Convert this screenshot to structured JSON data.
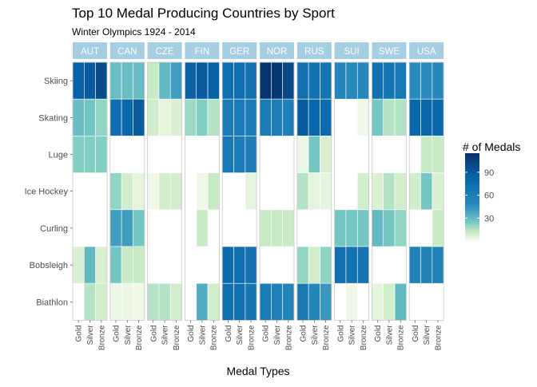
{
  "chart_data": {
    "type": "heatmap",
    "title": "Top 10 Medal Producing Countries by Sport",
    "subtitle": "Winter Olympics 1924 - 2014",
    "xlabel": "Medal Types",
    "ylabel": "",
    "facets": [
      "AUT",
      "CAN",
      "CZE",
      "FIN",
      "GER",
      "NOR",
      "RUS",
      "SUI",
      "SWE",
      "USA"
    ],
    "medal_types": [
      "Gold",
      "Silver",
      "Bronze"
    ],
    "sports": [
      "Skiing",
      "Skating",
      "Luge",
      "Ice Hockey",
      "Curling",
      "Bobsleigh",
      "Biathlon"
    ],
    "legend": {
      "title": "# of Medals",
      "ticks": [
        30,
        60,
        90
      ],
      "range": [
        0,
        115
      ],
      "placement": "right"
    },
    "values": {
      "AUT": {
        "Skiing": [
          85,
          88,
          98
        ],
        "Skating": [
          28,
          25,
          20
        ],
        "Luge": [
          22,
          22,
          22
        ],
        "Ice Hockey": [
          null,
          null,
          null
        ],
        "Curling": [
          null,
          null,
          null
        ],
        "Bobsleigh": [
          8,
          30,
          8
        ],
        "Biathlon": [
          null,
          15,
          10
        ]
      },
      "CAN": {
        "Skiing": [
          28,
          28,
          28
        ],
        "Skating": [
          75,
          80,
          88
        ],
        "Luge": [
          null,
          null,
          null
        ],
        "Ice Hockey": [
          20,
          10,
          5
        ],
        "Curling": [
          40,
          40,
          25
        ],
        "Bobsleigh": [
          25,
          12,
          12
        ],
        "Biathlon": [
          3,
          3,
          2
        ]
      },
      "CZE": {
        "Skiing": [
          12,
          30,
          40
        ],
        "Skating": [
          10,
          5,
          8
        ],
        "Luge": [
          null,
          null,
          null
        ],
        "Ice Hockey": [
          2,
          10,
          10
        ],
        "Curling": [
          null,
          null,
          null
        ],
        "Bobsleigh": [
          null,
          null,
          null
        ],
        "Biathlon": [
          15,
          15,
          10
        ]
      },
      "FIN": {
        "Skiing": [
          85,
          88,
          85
        ],
        "Skating": [
          18,
          22,
          15
        ],
        "Luge": [
          null,
          null,
          null
        ],
        "Ice Hockey": [
          null,
          2,
          12
        ],
        "Curling": [
          null,
          12,
          null
        ],
        "Bobsleigh": [
          null,
          null,
          null
        ],
        "Biathlon": [
          null,
          35,
          10
        ]
      },
      "GER": {
        "Skiing": [
          75,
          75,
          72
        ],
        "Skating": [
          62,
          62,
          62
        ],
        "Luge": [
          65,
          62,
          62
        ],
        "Ice Hockey": [
          null,
          null,
          5
        ],
        "Curling": [
          null,
          null,
          null
        ],
        "Bobsleigh": [
          78,
          75,
          72
        ],
        "Biathlon": [
          75,
          72,
          68
        ]
      },
      "NOR": {
        "Skiing": [
          112,
          110,
          100
        ],
        "Skating": [
          62,
          60,
          58
        ],
        "Luge": [
          null,
          null,
          null
        ],
        "Ice Hockey": [
          null,
          null,
          null
        ],
        "Curling": [
          12,
          12,
          12
        ],
        "Bobsleigh": [
          null,
          null,
          null
        ],
        "Biathlon": [
          62,
          58,
          55
        ]
      },
      "RUS": {
        "Skiing": [
          72,
          70,
          68
        ],
        "Skating": [
          88,
          82,
          78
        ],
        "Luge": [
          3,
          25,
          8
        ],
        "Ice Hockey": [
          15,
          5,
          5
        ],
        "Curling": [
          null,
          null,
          null
        ],
        "Bobsleigh": [
          20,
          10,
          20
        ],
        "Biathlon": [
          65,
          52,
          42
        ]
      },
      "SUI": {
        "Skiing": [
          52,
          50,
          50
        ],
        "Skating": [
          null,
          null,
          2
        ],
        "Luge": [
          null,
          null,
          null
        ],
        "Ice Hockey": [
          null,
          null,
          10
        ],
        "Curling": [
          25,
          25,
          25
        ],
        "Bobsleigh": [
          72,
          70,
          68
        ],
        "Biathlon": [
          null,
          2,
          null
        ]
      },
      "SWE": {
        "Skiing": [
          72,
          68,
          65
        ],
        "Skating": [
          25,
          15,
          15
        ],
        "Luge": [
          null,
          null,
          null
        ],
        "Ice Hockey": [
          8,
          15,
          10
        ],
        "Curling": [
          30,
          25,
          20
        ],
        "Bobsleigh": [
          null,
          null,
          null
        ],
        "Biathlon": [
          5,
          10,
          30
        ]
      },
      "USA": {
        "Skiing": [
          48,
          48,
          50
        ],
        "Skating": [
          80,
          82,
          80
        ],
        "Luge": [
          null,
          12,
          12
        ],
        "Ice Hockey": [
          10,
          25,
          8
        ],
        "Curling": [
          null,
          null,
          12
        ],
        "Bobsleigh": [
          55,
          55,
          55
        ],
        "Biathlon": [
          null,
          null,
          null
        ]
      }
    }
  }
}
